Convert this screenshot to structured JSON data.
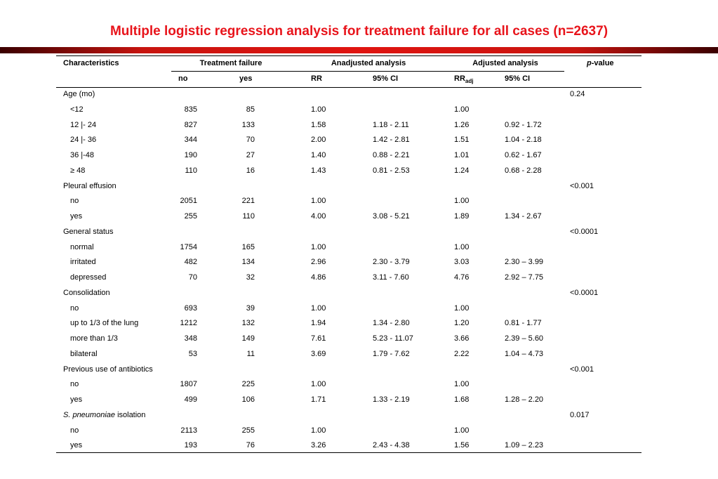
{
  "title": "Multiple logistic regression analysis for treatment failure for all cases (n=2637)",
  "colors": {
    "title": "#e8141b",
    "bar": "#e01410"
  },
  "headers": {
    "characteristics": "Characteristics",
    "treatment_failure": "Treatment failure",
    "unadjusted": "Anadjusted analysis",
    "adjusted": "Adjusted analysis",
    "pvalue_italic": "p",
    "pvalue_rest": "-value",
    "no": "no",
    "yes": "yes",
    "rr": "RR",
    "ci": "95% CI",
    "rr_adj_main": "RR",
    "rr_adj_sub": "adj",
    "ci_adj": "95% CI"
  },
  "rows": [
    {
      "label": "Age (mo)",
      "group": true,
      "p": "0.24"
    },
    {
      "label": "<12",
      "no": "835",
      "yes": "85",
      "rr": "1.00",
      "ci": "",
      "rr_adj": "1.00",
      "ci_adj": ""
    },
    {
      "label": "12 |- 24",
      "no": "827",
      "yes": "133",
      "rr": "1.58",
      "ci": "1.18 - 2.11",
      "rr_adj": "1.26",
      "ci_adj": "0.92 - 1.72"
    },
    {
      "label": "24 |- 36",
      "no": "344",
      "yes": "70",
      "rr": "2.00",
      "ci": "1.42 - 2.81",
      "rr_adj": "1.51",
      "ci_adj": "1.04 - 2.18"
    },
    {
      "label": "36 |-48",
      "no": "190",
      "yes": "27",
      "rr": "1.40",
      "ci": "0.88 - 2.21",
      "rr_adj": "1.01",
      "ci_adj": "0.62 - 1.67"
    },
    {
      "label": "≥ 48",
      "no": "110",
      "yes": "16",
      "rr": "1.43",
      "ci": "0.81 - 2.53",
      "rr_adj": "1.24",
      "ci_adj": "0.68 - 2.28"
    },
    {
      "label": "Pleural effusion",
      "group": true,
      "p": "<0.001"
    },
    {
      "label": "no",
      "no": "2051",
      "yes": "221",
      "rr": "1.00",
      "ci": "",
      "rr_adj": "1.00",
      "ci_adj": ""
    },
    {
      "label": "yes",
      "no": "255",
      "yes": "110",
      "rr": "4.00",
      "ci": "3.08 - 5.21",
      "rr_adj": "1.89",
      "ci_adj": "1.34 - 2.67"
    },
    {
      "label": "General status",
      "group": true,
      "p": "<0.0001"
    },
    {
      "label": "normal",
      "no": "1754",
      "yes": "165",
      "rr": "1.00",
      "ci": "",
      "rr_adj": "1.00",
      "ci_adj": ""
    },
    {
      "label": "irritated",
      "no": "482",
      "yes": "134",
      "rr": "2.96",
      "ci": "2.30 - 3.79",
      "rr_adj": "3.03",
      "ci_adj": "2.30 – 3.99"
    },
    {
      "label": "depressed",
      "no": "70",
      "yes": "32",
      "rr": "4.86",
      "ci": "3.11 - 7.60",
      "rr_adj": "4.76",
      "ci_adj": "2.92 – 7.75"
    },
    {
      "label": "Consolidation",
      "group": true,
      "p": "<0.0001"
    },
    {
      "label": "no",
      "no": "693",
      "yes": "39",
      "rr": "1.00",
      "ci": "",
      "rr_adj": "1.00",
      "ci_adj": ""
    },
    {
      "label": "up to 1/3 of the lung",
      "no": "1212",
      "yes": "132",
      "rr": "1.94",
      "ci": "1.34 - 2.80",
      "rr_adj": "1.20",
      "ci_adj": "0.81 - 1.77"
    },
    {
      "label": "more than 1/3",
      "no": "348",
      "yes": "149",
      "rr": "7.61",
      "ci": "5.23 - 11.07",
      "rr_adj": "3.66",
      "ci_adj": "2.39 – 5.60"
    },
    {
      "label": "bilateral",
      "no": "53",
      "yes": "11",
      "rr": "3.69",
      "ci": "1.79 - 7.62",
      "rr_adj": "2.22",
      "ci_adj": "1.04 – 4.73"
    },
    {
      "label": "Previous use of antibiotics",
      "group": true,
      "p": "<0.001"
    },
    {
      "label": "no",
      "no": "1807",
      "yes": "225",
      "rr": "1.00",
      "ci": "",
      "rr_adj": "1.00",
      "ci_adj": ""
    },
    {
      "label": "yes",
      "no": "499",
      "yes": "106",
      "rr": "1.71",
      "ci": "1.33 - 2.19",
      "rr_adj": "1.68",
      "ci_adj": "1.28 – 2.20"
    },
    {
      "label": "isolation",
      "label_italic": "S. pneumoniae",
      "group": true,
      "p": "0.017"
    },
    {
      "label": "no",
      "no": "2113",
      "yes": "255",
      "rr": "1.00",
      "ci": "",
      "rr_adj": "1.00",
      "ci_adj": ""
    },
    {
      "label": "yes",
      "no": "193",
      "yes": "76",
      "rr": "3.26",
      "ci": "2.43 - 4.38",
      "rr_adj": "1.56",
      "ci_adj": "1.09 – 2.23"
    }
  ]
}
